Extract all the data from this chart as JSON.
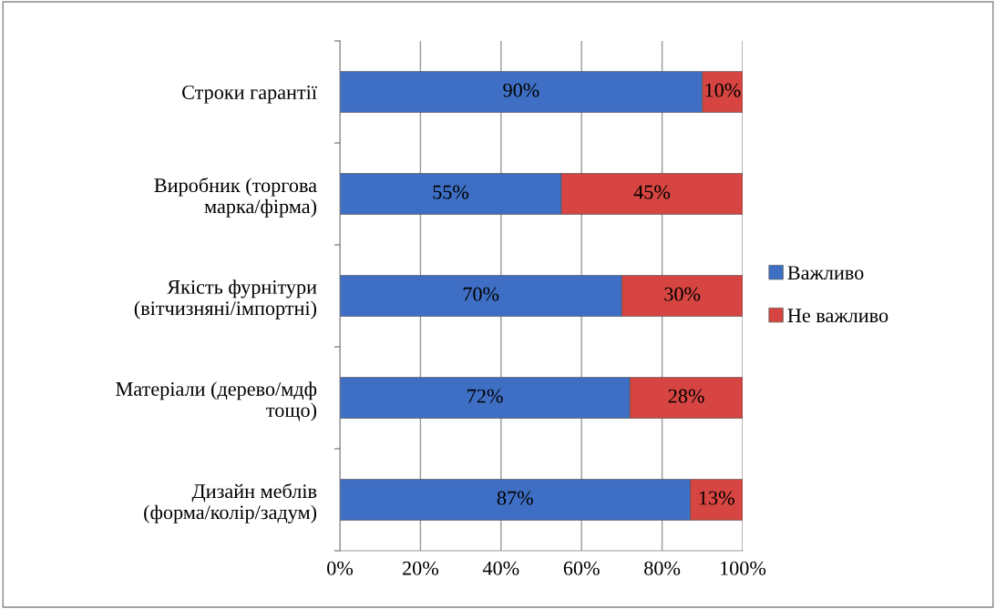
{
  "chart_data": {
    "type": "bar",
    "orientation": "horizontal",
    "stacked": true,
    "categories": [
      "Строки гарантії",
      "Виробник (торгова\nмарка/фірма)",
      "Якість фурнітури\n(вітчизняні/імпортні)",
      "Матеріали (дерево/мдф\nтощо)",
      "Дизайн меблів\n(форма/колір/задум)"
    ],
    "series": [
      {
        "name": "Важливо",
        "color": "#3f6fc4",
        "values": [
          90,
          55,
          70,
          72,
          87
        ],
        "value_labels": [
          "90%",
          "55%",
          "70%",
          "72%",
          "87%"
        ]
      },
      {
        "name": "Не важливо",
        "color": "#d64541",
        "values": [
          10,
          45,
          30,
          28,
          13
        ],
        "value_labels": [
          "10%",
          "45%",
          "30%",
          "28%",
          "13%"
        ]
      }
    ],
    "xlim": [
      0,
      100
    ],
    "xticks": [
      {
        "value": 0,
        "label": "0%"
      },
      {
        "value": 20,
        "label": "20%"
      },
      {
        "value": 40,
        "label": "40%"
      },
      {
        "value": 60,
        "label": "60%"
      },
      {
        "value": 80,
        "label": "80%"
      },
      {
        "value": 100,
        "label": "100%"
      }
    ],
    "grid": "x",
    "legend": "right"
  }
}
